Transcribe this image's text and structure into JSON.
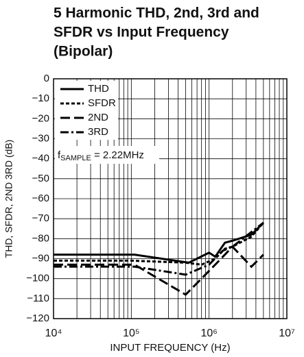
{
  "chart_data": {
    "type": "line",
    "title": [
      "5 Harmonic THD, 2nd, 3rd and",
      "SFDR vs Input Frequency",
      "(Bipolar)"
    ],
    "x_label": "INPUT FREQUENCY (Hz)",
    "y_label": "THD, SFDR, 2ND 3RD (dB)",
    "annotation": {
      "f": "f",
      "sub": "SAMPLE",
      "rest": " = 2.22MHz"
    },
    "xscale": "log",
    "grid": true,
    "legend": "top-left",
    "xlim": [
      10000,
      10000000
    ],
    "xticks": [
      {
        "value": 10000,
        "label": "10⁴"
      },
      {
        "value": 100000,
        "label": "10⁵"
      },
      {
        "value": 1000000,
        "label": "10⁶"
      },
      {
        "value": 10000000,
        "label": "10⁷"
      }
    ],
    "ylim": [
      -120,
      0
    ],
    "yticks": [
      0,
      {
        "value": -10,
        "label": "−10"
      },
      {
        "value": -20,
        "label": "−20"
      },
      {
        "value": -30,
        "label": "−30"
      },
      {
        "value": -40,
        "label": "−40"
      },
      {
        "value": -50,
        "label": "−50"
      },
      {
        "value": -60,
        "label": "−60"
      },
      {
        "value": -70,
        "label": "−70"
      },
      {
        "value": -80,
        "label": "−80"
      },
      {
        "value": -90,
        "label": "−90"
      },
      {
        "value": -100,
        "label": "−100"
      },
      {
        "value": -110,
        "label": "−110"
      },
      {
        "value": -120,
        "label": "−120"
      }
    ],
    "series": [
      {
        "name": "THD",
        "color": "#000000",
        "dash": "solid",
        "x": [
          10000,
          110000,
          550000,
          1000000,
          1200000,
          1600000,
          2000000,
          3500000,
          5000000
        ],
        "values": [
          -88,
          -88,
          -92,
          -87,
          -89,
          -82,
          -81,
          -78,
          -72
        ]
      },
      {
        "name": "SFDR",
        "color": "#000000",
        "dash": "dotted",
        "x": [
          10000,
          100000,
          500000,
          800000,
          1200000,
          1600000,
          2000000,
          3500000,
          5000000
        ],
        "values": [
          -91,
          -91,
          -92,
          -93,
          -90,
          -85,
          -84,
          -79,
          -72
        ]
      },
      {
        "name": "2ND",
        "color": "#000000",
        "dash": "dashed",
        "x": [
          10000,
          110000,
          500000,
          1200000,
          2000000,
          3500000,
          5000000
        ],
        "values": [
          -93,
          -93,
          -108,
          -93,
          -84,
          -94,
          -88
        ]
      },
      {
        "name": "3RD",
        "color": "#000000",
        "dash": "dashdot",
        "x": [
          10000,
          110000,
          500000,
          1000000,
          1500000,
          2000000,
          5000000
        ],
        "values": [
          -94,
          -94,
          -98,
          -93,
          -86,
          -84,
          -72
        ]
      }
    ]
  }
}
